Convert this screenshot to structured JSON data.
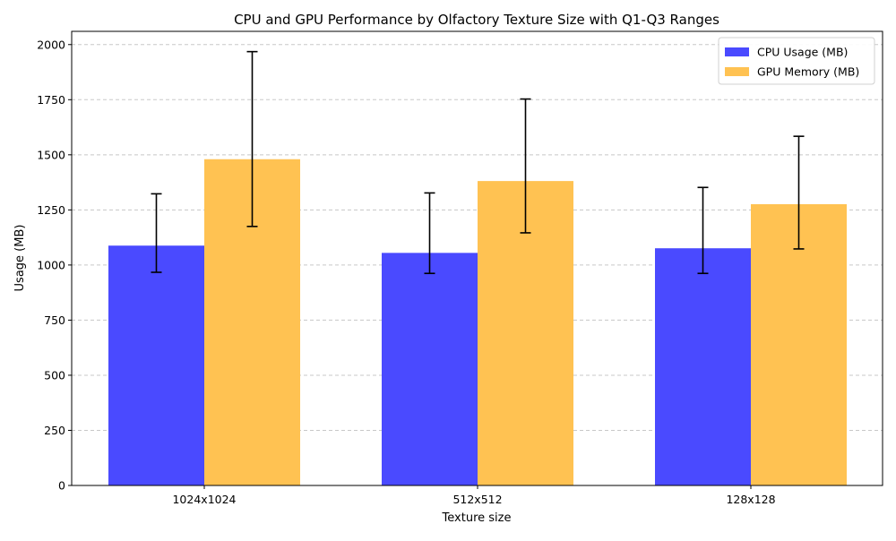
{
  "chart_data": {
    "type": "bar",
    "title": "CPU and GPU Performance by Olfactory Texture Size with Q1-Q3 Ranges",
    "xlabel": "Texture size",
    "ylabel": "Usage (MB)",
    "categories": [
      "1024x1024",
      "512x512",
      "128x128"
    ],
    "ylim": [
      0,
      2060
    ],
    "yticks": [
      0,
      250,
      500,
      750,
      1000,
      1250,
      1500,
      1750,
      2000
    ],
    "grid": true,
    "legend_position": "top-right",
    "series": [
      {
        "name": "CPU Usage (MB)",
        "color": "#4a4aff",
        "values": [
          1088,
          1055,
          1076
        ],
        "q1": [
          967,
          962,
          962
        ],
        "q3": [
          1323,
          1327,
          1352
        ]
      },
      {
        "name": "GPU Memory (MB)",
        "color": "#ffc252",
        "values": [
          1480,
          1381,
          1276
        ],
        "q1": [
          1175,
          1146,
          1073
        ],
        "q3": [
          1968,
          1753,
          1584
        ]
      }
    ]
  }
}
